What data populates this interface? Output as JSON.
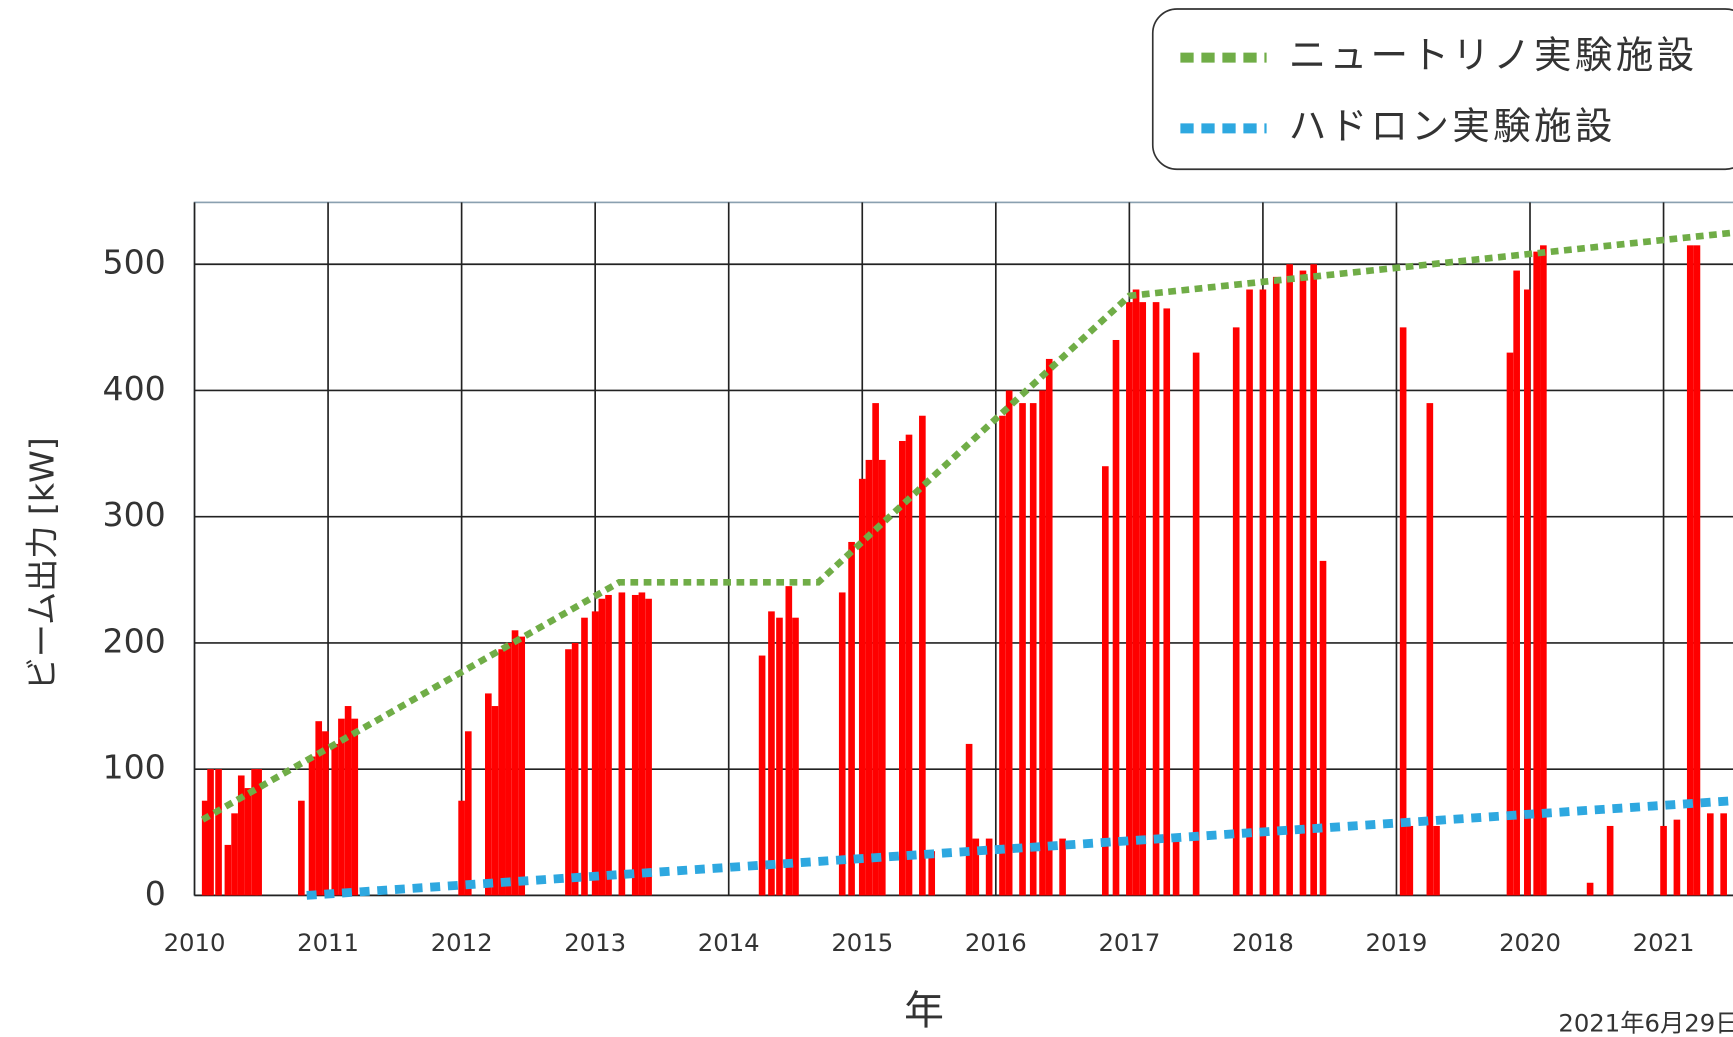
{
  "chart_data": {
    "type": "line",
    "y_label": "ビーム出力 [kW]",
    "x_label": "年",
    "note": "2021年6月29日",
    "xlim": [
      2010,
      2021.52
    ],
    "ylim": [
      0,
      549
    ],
    "xticks": [
      2010,
      2011,
      2012,
      2013,
      2014,
      2015,
      2016,
      2017,
      2018,
      2019,
      2020,
      2021
    ],
    "yticks": [
      0,
      100,
      200,
      300,
      400,
      500
    ],
    "grid": true,
    "legend": "top-right",
    "beam": {
      "color": "#ff0000",
      "x": [
        2010.08,
        2010.12,
        2010.18,
        2010.25,
        2010.3,
        2010.35,
        2010.4,
        2010.45,
        2010.48,
        2010.8,
        2010.88,
        2010.93,
        2010.98,
        2011.05,
        2011.1,
        2011.15,
        2011.2,
        2012.0,
        2012.05,
        2012.2,
        2012.25,
        2012.3,
        2012.35,
        2012.4,
        2012.45,
        2012.8,
        2012.85,
        2012.92,
        2013.0,
        2013.05,
        2013.1,
        2013.2,
        2013.3,
        2013.35,
        2013.4,
        2014.25,
        2014.32,
        2014.38,
        2014.45,
        2014.5,
        2014.85,
        2014.92,
        2015.0,
        2015.05,
        2015.1,
        2015.15,
        2015.3,
        2015.35,
        2015.45,
        2015.52,
        2015.8,
        2015.85,
        2015.95,
        2016.05,
        2016.1,
        2016.2,
        2016.28,
        2016.35,
        2016.4,
        2016.5,
        2016.82,
        2016.9,
        2017.0,
        2017.05,
        2017.1,
        2017.2,
        2017.28,
        2017.35,
        2017.5,
        2017.8,
        2017.9,
        2018.0,
        2018.1,
        2018.2,
        2018.3,
        2018.38,
        2018.45,
        2019.05,
        2019.1,
        2019.25,
        2019.3,
        2019.85,
        2019.9,
        2019.98,
        2020.05,
        2020.1,
        2020.45,
        2020.6,
        2021.0,
        2021.1,
        2021.2,
        2021.25,
        2021.35,
        2021.45
      ],
      "values": [
        75,
        100,
        100,
        40,
        65,
        95,
        85,
        100,
        100,
        75,
        110,
        138,
        130,
        120,
        140,
        150,
        140,
        75,
        130,
        160,
        150,
        195,
        200,
        210,
        205,
        195,
        200,
        220,
        225,
        235,
        238,
        240,
        238,
        240,
        235,
        190,
        225,
        220,
        245,
        220,
        240,
        280,
        330,
        345,
        390,
        345,
        360,
        365,
        380,
        35,
        120,
        45,
        45,
        380,
        400,
        390,
        390,
        400,
        425,
        45,
        340,
        440,
        470,
        480,
        470,
        470,
        465,
        45,
        430,
        450,
        480,
        480,
        490,
        500,
        495,
        500,
        265,
        450,
        55,
        390,
        55,
        430,
        495,
        480,
        510,
        515,
        10,
        55,
        55,
        60,
        515,
        515,
        65,
        65
      ]
    },
    "series": [
      {
        "name": "ニュートリノ実験施設",
        "color": "#70ad47",
        "x": [
          2010.06,
          2013.18,
          2014.67,
          2017.0,
          2021.52
        ],
        "values": [
          60,
          248,
          248,
          475,
          525
        ]
      },
      {
        "name": "ハドロン実験施設",
        "color": "#2ea8e0",
        "x": [
          2010.84,
          2021.52
        ],
        "values": [
          0,
          75
        ]
      }
    ]
  }
}
